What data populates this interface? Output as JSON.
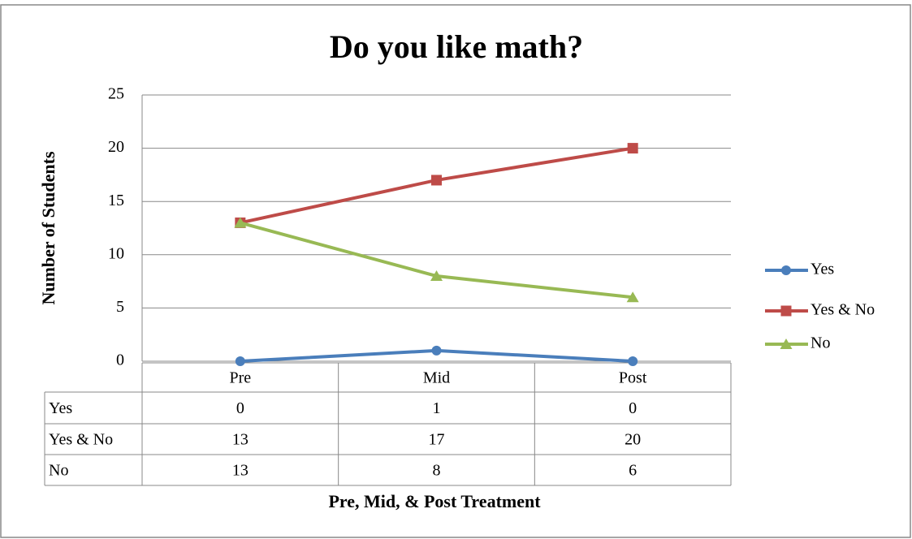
{
  "chart_data": {
    "type": "line",
    "title": "Do you like math?",
    "y_label": "Number of Students",
    "x_label": "Pre, Mid, & Post Treatment",
    "categories": [
      "Pre",
      "Mid",
      "Post"
    ],
    "series": [
      {
        "name": "Yes",
        "color": "#4a7ebb",
        "marker": "circle",
        "values": [
          0,
          1,
          0
        ]
      },
      {
        "name": "Yes & No",
        "color": "#be4b48",
        "marker": "square",
        "values": [
          13,
          17,
          20
        ]
      },
      {
        "name": "No",
        "color": "#98b954",
        "marker": "triangle",
        "values": [
          13,
          8,
          6
        ]
      }
    ],
    "ylim": [
      0,
      25
    ],
    "yticks": [
      0,
      5,
      10,
      15,
      20,
      25
    ],
    "grid": true,
    "legend": "right",
    "data_table": true
  }
}
